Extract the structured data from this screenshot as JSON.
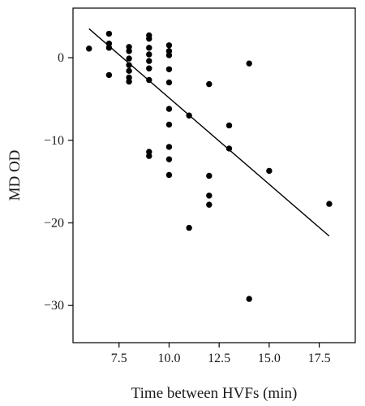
{
  "chart_data": {
    "type": "scatter",
    "title": "",
    "xlabel": "Time between HVFs (min)",
    "ylabel": "MD OD",
    "xlim": [
      5.2,
      19.3
    ],
    "ylim": [
      -34.5,
      6.0
    ],
    "x_ticks": [
      7.5,
      10.0,
      12.5,
      15.0,
      17.5
    ],
    "x_tick_labels": [
      "7.5",
      "10.0",
      "12.5",
      "15.0",
      "17.5"
    ],
    "y_ticks": [
      0,
      -10,
      -20,
      -30
    ],
    "y_tick_labels": [
      "0",
      "−10",
      "−20",
      "−30"
    ],
    "grid": false,
    "legend": "none",
    "points": [
      {
        "x": 6.0,
        "y": 1.1
      },
      {
        "x": 7.0,
        "y": 2.9
      },
      {
        "x": 7.0,
        "y": 1.7
      },
      {
        "x": 7.0,
        "y": 1.2
      },
      {
        "x": 7.0,
        "y": -2.1
      },
      {
        "x": 8.0,
        "y": 1.3
      },
      {
        "x": 8.0,
        "y": 0.8
      },
      {
        "x": 8.0,
        "y": -0.1
      },
      {
        "x": 8.0,
        "y": -0.9
      },
      {
        "x": 8.0,
        "y": -1.6
      },
      {
        "x": 8.0,
        "y": -2.4
      },
      {
        "x": 8.0,
        "y": -2.9
      },
      {
        "x": 9.0,
        "y": 2.7
      },
      {
        "x": 9.0,
        "y": 2.3
      },
      {
        "x": 9.0,
        "y": 1.2
      },
      {
        "x": 9.0,
        "y": 0.4
      },
      {
        "x": 9.0,
        "y": -0.4
      },
      {
        "x": 9.0,
        "y": -1.3
      },
      {
        "x": 9.0,
        "y": -2.7
      },
      {
        "x": 9.0,
        "y": -11.4
      },
      {
        "x": 9.0,
        "y": -11.9
      },
      {
        "x": 10.0,
        "y": 1.5
      },
      {
        "x": 10.0,
        "y": 0.8
      },
      {
        "x": 10.0,
        "y": 0.3
      },
      {
        "x": 10.0,
        "y": -1.4
      },
      {
        "x": 10.0,
        "y": -3.0
      },
      {
        "x": 10.0,
        "y": -6.2
      },
      {
        "x": 10.0,
        "y": -8.1
      },
      {
        "x": 10.0,
        "y": -10.8
      },
      {
        "x": 10.0,
        "y": -12.3
      },
      {
        "x": 10.0,
        "y": -14.2
      },
      {
        "x": 11.0,
        "y": -7.0
      },
      {
        "x": 11.0,
        "y": -20.6
      },
      {
        "x": 12.0,
        "y": -3.2
      },
      {
        "x": 12.0,
        "y": -14.3
      },
      {
        "x": 12.0,
        "y": -16.7
      },
      {
        "x": 12.0,
        "y": -17.8
      },
      {
        "x": 13.0,
        "y": -8.2
      },
      {
        "x": 13.0,
        "y": -11.0
      },
      {
        "x": 14.0,
        "y": -0.7
      },
      {
        "x": 14.0,
        "y": -29.2
      },
      {
        "x": 15.0,
        "y": -13.7
      },
      {
        "x": 18.0,
        "y": -17.7
      }
    ],
    "fit_line": {
      "x": [
        6.0,
        18.0
      ],
      "y": [
        3.5,
        -21.6
      ]
    }
  }
}
